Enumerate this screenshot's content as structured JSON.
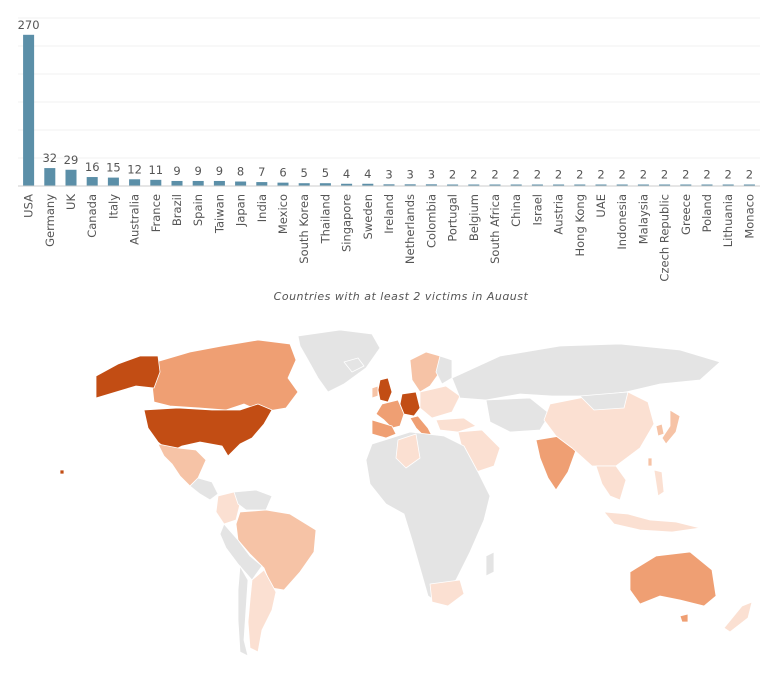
{
  "chart_data": {
    "type": "bar",
    "caption": "Countries with at least 2 victims in August",
    "categories": [
      "USA",
      "Germany",
      "UK",
      "Canada",
      "Italy",
      "Australia",
      "France",
      "Brazil",
      "Spain",
      "Taiwan",
      "Japan",
      "India",
      "Mexico",
      "South Korea",
      "Thailand",
      "Singapore",
      "Sweden",
      "Ireland",
      "Netherlands",
      "Colombia",
      "Portugal",
      "Belgium",
      "South Africa",
      "China",
      "Israel",
      "Austria",
      "Hong Kong",
      "UAE",
      "Indonesia",
      "Malaysia",
      "Czech Republic",
      "Greece",
      "Poland",
      "Lithuania",
      "Monaco"
    ],
    "values": [
      270,
      32,
      29,
      16,
      15,
      12,
      11,
      9,
      9,
      9,
      8,
      7,
      6,
      5,
      5,
      4,
      4,
      3,
      3,
      3,
      2,
      2,
      2,
      2,
      2,
      2,
      2,
      2,
      2,
      2,
      2,
      2,
      2,
      2,
      2
    ],
    "ylim": [
      0,
      300
    ],
    "grid": true,
    "bar_color": "#5b8fa8"
  },
  "map": {
    "colors": {
      "none": "#e4e4e4",
      "border": "#ffffff",
      "level_1": "#fbe0d2",
      "level_2": "#f6c3a6",
      "level_3": "#ef9f73",
      "level_4": "#c24d14"
    }
  }
}
